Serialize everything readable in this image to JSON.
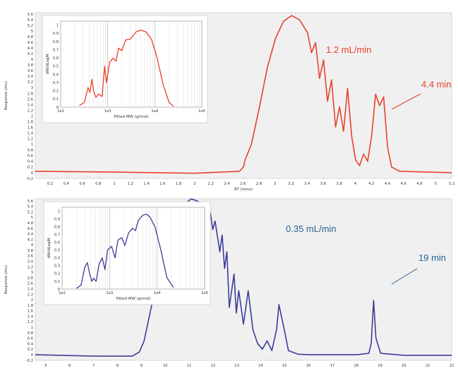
{
  "colors": {
    "top_trace": "#e8412c",
    "bottom_trace": "#3c3c9a",
    "panel_bg": "#f0f0f0",
    "annotation_blue": "#2a6496"
  },
  "chart_data": [
    {
      "type": "line",
      "name": "top",
      "xlabel": "RT (mins)",
      "ylabel": "Response (mv)",
      "xlim": [
        0,
        5.2
      ],
      "ylim": [
        -0.2,
        5.6
      ],
      "xticks": [
        "0.2",
        "0.4",
        "0.6",
        "0.8",
        "1",
        "1.2",
        "1.4",
        "1.6",
        "1.8",
        "2",
        "2.2",
        "2.4",
        "2.6",
        "2.8",
        "3",
        "3.2",
        "3.4",
        "3.6",
        "3.8",
        "4",
        "4.2",
        "4.4",
        "4.6",
        "4.8",
        "5",
        "5.2"
      ],
      "yticks": [
        "-0.2",
        "0",
        "0.2",
        "0.4",
        "0.6",
        "0.8",
        "1",
        "1.2",
        "1.4",
        "1.6",
        "1.8",
        "2",
        "2.2",
        "2.4",
        "2.6",
        "2.8",
        "3",
        "3.2",
        "3.4",
        "3.6",
        "3.8",
        "4",
        "4.2",
        "4.4",
        "4.6",
        "4.8",
        "5",
        "5.2",
        "5.4",
        "5.6"
      ],
      "annotations": [
        "1.2 mL/min",
        "4.4 min"
      ],
      "series": [
        {
          "points": [
            [
              0,
              0.05
            ],
            [
              1,
              0.02
            ],
            [
              2,
              -0.02
            ],
            [
              2.55,
              0.05
            ],
            [
              2.6,
              0.2
            ],
            [
              2.62,
              0.45
            ],
            [
              2.7,
              1.0
            ],
            [
              2.8,
              2.3
            ],
            [
              2.9,
              3.7
            ],
            [
              3.0,
              4.7
            ],
            [
              3.1,
              5.3
            ],
            [
              3.2,
              5.5
            ],
            [
              3.3,
              5.35
            ],
            [
              3.4,
              4.9
            ],
            [
              3.45,
              4.2
            ],
            [
              3.5,
              4.55
            ],
            [
              3.55,
              3.3
            ],
            [
              3.6,
              3.95
            ],
            [
              3.65,
              2.5
            ],
            [
              3.7,
              3.25
            ],
            [
              3.75,
              1.6
            ],
            [
              3.8,
              2.3
            ],
            [
              3.85,
              1.45
            ],
            [
              3.9,
              2.95
            ],
            [
              3.95,
              1.3
            ],
            [
              4.0,
              0.45
            ],
            [
              4.05,
              0.25
            ],
            [
              4.1,
              0.65
            ],
            [
              4.15,
              0.4
            ],
            [
              4.2,
              1.25
            ],
            [
              4.25,
              2.75
            ],
            [
              4.3,
              2.35
            ],
            [
              4.35,
              2.65
            ],
            [
              4.4,
              0.9
            ],
            [
              4.45,
              0.2
            ],
            [
              4.55,
              0.05
            ],
            [
              5.2,
              0.0
            ]
          ]
        }
      ]
    },
    {
      "type": "line",
      "name": "top-inset",
      "xlabel": "Fitted MW (g/mol)",
      "ylabel": "dW/dLogM",
      "xscale": "log",
      "xlim": [
        100,
        100000
      ],
      "ylim": [
        0,
        1.05
      ],
      "xticks": [
        "1e2",
        "1e3",
        "1e4",
        "1e5"
      ],
      "yticks": [
        "0",
        "0.1",
        "0.2",
        "0.3",
        "0.4",
        "0.5",
        "0.6",
        "0.7",
        "0.8",
        "0.9",
        "1"
      ],
      "series": [
        {
          "points": [
            [
              250,
              0.02
            ],
            [
              320,
              0.06
            ],
            [
              380,
              0.24
            ],
            [
              420,
              0.18
            ],
            [
              460,
              0.34
            ],
            [
              500,
              0.2
            ],
            [
              560,
              0.12
            ],
            [
              640,
              0.16
            ],
            [
              760,
              0.13
            ],
            [
              860,
              0.5
            ],
            [
              940,
              0.3
            ],
            [
              1100,
              0.55
            ],
            [
              1300,
              0.6
            ],
            [
              1500,
              0.56
            ],
            [
              1700,
              0.72
            ],
            [
              2000,
              0.69
            ],
            [
              2400,
              0.82
            ],
            [
              3000,
              0.83
            ],
            [
              4000,
              0.92
            ],
            [
              5000,
              0.94
            ],
            [
              6500,
              0.92
            ],
            [
              8500,
              0.83
            ],
            [
              11000,
              0.62
            ],
            [
              15000,
              0.28
            ],
            [
              20000,
              0.06
            ],
            [
              25000,
              0.01
            ]
          ]
        }
      ]
    },
    {
      "type": "line",
      "name": "bottom",
      "xlabel": "",
      "ylabel": "Response (mv)",
      "xlim": [
        4.4,
        22
      ],
      "ylim": [
        -0.2,
        5.6
      ],
      "xticks": [
        "5",
        "6",
        "7",
        "8",
        "9",
        "10",
        "11",
        "12",
        "13",
        "14",
        "15",
        "16",
        "17",
        "18",
        "19",
        "20",
        "21",
        "22"
      ],
      "yticks": [
        "-0.2",
        "0",
        "0.2",
        "0.4",
        "0.6",
        "0.8",
        "1",
        "1.2",
        "1.4",
        "1.6",
        "1.8",
        "2",
        "2.2",
        "2.4",
        "2.6",
        "2.8",
        "3",
        "3.2",
        "3.4",
        "3.6",
        "3.8",
        "4",
        "4.2",
        "4.4",
        "4.6",
        "4.8",
        "5",
        "5.2",
        "5.4",
        "5.6"
      ],
      "annotations": [
        "0.35 mL/min",
        "19 min"
      ],
      "series": [
        {
          "points": [
            [
              4.4,
              0.0
            ],
            [
              7,
              -0.05
            ],
            [
              8.5,
              -0.05
            ],
            [
              8.8,
              0.1
            ],
            [
              9.0,
              0.5
            ],
            [
              9.5,
              2.5
            ],
            [
              10.0,
              4.4
            ],
            [
              10.5,
              5.3
            ],
            [
              11.0,
              5.6
            ],
            [
              11.3,
              5.5
            ],
            [
              11.6,
              5.2
            ],
            [
              11.7,
              4.8
            ],
            [
              11.8,
              5.1
            ],
            [
              11.9,
              4.5
            ],
            [
              12.0,
              4.8
            ],
            [
              12.2,
              3.7
            ],
            [
              12.3,
              4.3
            ],
            [
              12.4,
              3.1
            ],
            [
              12.5,
              3.7
            ],
            [
              12.6,
              1.7
            ],
            [
              12.8,
              2.9
            ],
            [
              12.9,
              1.5
            ],
            [
              13.0,
              2.3
            ],
            [
              13.2,
              1.1
            ],
            [
              13.4,
              2.3
            ],
            [
              13.6,
              0.9
            ],
            [
              13.8,
              0.4
            ],
            [
              14.0,
              0.2
            ],
            [
              14.2,
              0.5
            ],
            [
              14.4,
              0.15
            ],
            [
              14.6,
              0.9
            ],
            [
              14.7,
              1.8
            ],
            [
              14.8,
              1.4
            ],
            [
              14.9,
              1.0
            ],
            [
              15.1,
              0.15
            ],
            [
              15.5,
              0.02
            ],
            [
              16,
              0.0
            ],
            [
              18,
              0.0
            ],
            [
              18.5,
              0.05
            ],
            [
              18.6,
              0.4
            ],
            [
              18.7,
              1.95
            ],
            [
              18.8,
              0.6
            ],
            [
              19.0,
              0.05
            ],
            [
              20,
              -0.02
            ],
            [
              22,
              -0.02
            ]
          ]
        }
      ]
    },
    {
      "type": "line",
      "name": "bottom-inset",
      "xlabel": "Fitted MW (g/mol)",
      "ylabel": "dW/dLogM",
      "xscale": "log",
      "xlim": [
        100,
        100000
      ],
      "ylim": [
        0,
        1.05
      ],
      "xticks": [
        "1e2",
        "1e3",
        "1e4",
        "1e5"
      ],
      "yticks": [
        "0",
        "0.1",
        "0.2",
        "0.3",
        "0.4",
        "0.5",
        "0.6",
        "0.7",
        "0.8",
        "0.9",
        "1"
      ],
      "series": [
        {
          "points": [
            [
              200,
              0.01
            ],
            [
              250,
              0.05
            ],
            [
              300,
              0.28
            ],
            [
              340,
              0.34
            ],
            [
              380,
              0.2
            ],
            [
              420,
              0.1
            ],
            [
              460,
              0.14
            ],
            [
              520,
              0.1
            ],
            [
              600,
              0.32
            ],
            [
              700,
              0.4
            ],
            [
              800,
              0.25
            ],
            [
              900,
              0.5
            ],
            [
              1100,
              0.55
            ],
            [
              1300,
              0.4
            ],
            [
              1500,
              0.63
            ],
            [
              1800,
              0.66
            ],
            [
              2100,
              0.56
            ],
            [
              2500,
              0.72
            ],
            [
              3000,
              0.78
            ],
            [
              3500,
              0.75
            ],
            [
              4000,
              0.88
            ],
            [
              5000,
              0.95
            ],
            [
              6000,
              0.96
            ],
            [
              7000,
              0.93
            ],
            [
              9000,
              0.8
            ],
            [
              12000,
              0.5
            ],
            [
              16000,
              0.15
            ],
            [
              22000,
              0.02
            ]
          ]
        }
      ]
    }
  ]
}
